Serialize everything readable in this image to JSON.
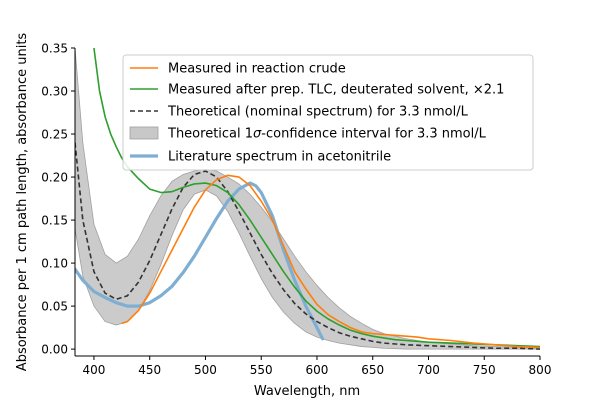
{
  "chart_data": {
    "type": "line",
    "title": "",
    "xlabel": "Wavelength, nm",
    "ylabel": "Absorbance per 1 cm path length, absorbance units",
    "xlim": [
      383,
      800
    ],
    "ylim": [
      -0.008,
      0.35
    ],
    "x_ticks": [
      400,
      450,
      500,
      550,
      600,
      650,
      700,
      750,
      800
    ],
    "x_tick_labels": [
      "400",
      "450",
      "500",
      "550",
      "600",
      "650",
      "700",
      "750",
      "800"
    ],
    "y_ticks": [
      0.0,
      0.05,
      0.1,
      0.15,
      0.2,
      0.25,
      0.3,
      0.35
    ],
    "y_tick_labels": [
      "0.00",
      "0.05",
      "0.10",
      "0.15",
      "0.20",
      "0.25",
      "0.30",
      "0.35"
    ],
    "grid": false,
    "legend_position": "top-right",
    "legend": {
      "measured_crude": "Measured in reaction crude",
      "measured_tlc": "Measured after prep. TLC, deuterated solvent, ×2.1",
      "theoretical": "Theoretical (nominal spectrum) for 3.3 nmol/L",
      "ci_prefix": "Theoretical 1",
      "ci_sigma": "σ",
      "ci_suffix": "-confidence interval for 3.3 nmol/L",
      "literature": "Literature spectrum in acetonitrile"
    },
    "series": [
      {
        "key": "measured_crude",
        "color": "#ff7f0e",
        "style": "solid",
        "x": [
          425,
          430,
          440,
          450,
          460,
          470,
          480,
          490,
          500,
          510,
          520,
          530,
          540,
          550,
          560,
          570,
          580,
          590,
          600,
          610,
          620,
          630,
          640,
          650,
          660,
          670,
          680,
          690,
          700,
          720,
          740,
          760,
          780,
          800
        ],
        "y": [
          0.03,
          0.032,
          0.045,
          0.065,
          0.09,
          0.115,
          0.14,
          0.165,
          0.185,
          0.197,
          0.202,
          0.2,
          0.19,
          0.172,
          0.15,
          0.12,
          0.09,
          0.07,
          0.052,
          0.04,
          0.032,
          0.025,
          0.02,
          0.018,
          0.017,
          0.016,
          0.015,
          0.014,
          0.012,
          0.01,
          0.007,
          0.005,
          0.003,
          0.002
        ]
      },
      {
        "key": "measured_tlc",
        "color": "#2ca02c",
        "style": "solid",
        "x": [
          400,
          405,
          410,
          415,
          420,
          425,
          430,
          440,
          450,
          460,
          470,
          480,
          490,
          500,
          510,
          520,
          530,
          540,
          550,
          560,
          570,
          580,
          590,
          600,
          610,
          620,
          630,
          640,
          650,
          660,
          670,
          680,
          700,
          720,
          740,
          760,
          780,
          800
        ],
        "y": [
          0.35,
          0.3,
          0.27,
          0.25,
          0.235,
          0.222,
          0.212,
          0.198,
          0.186,
          0.182,
          0.183,
          0.188,
          0.192,
          0.193,
          0.19,
          0.182,
          0.168,
          0.15,
          0.13,
          0.11,
          0.09,
          0.072,
          0.056,
          0.044,
          0.035,
          0.028,
          0.022,
          0.018,
          0.015,
          0.013,
          0.011,
          0.01,
          0.008,
          0.007,
          0.006,
          0.005,
          0.004,
          0.003
        ]
      },
      {
        "key": "theoretical",
        "color": "#333333",
        "style": "dashed",
        "x": [
          383,
          390,
          400,
          410,
          420,
          430,
          440,
          450,
          460,
          470,
          480,
          490,
          500,
          510,
          520,
          530,
          540,
          550,
          560,
          570,
          580,
          590,
          600,
          610,
          620,
          630,
          640,
          650,
          660,
          680,
          700,
          720,
          740,
          760,
          780,
          800
        ],
        "y": [
          0.24,
          0.15,
          0.09,
          0.065,
          0.058,
          0.062,
          0.078,
          0.103,
          0.133,
          0.163,
          0.188,
          0.203,
          0.207,
          0.2,
          0.183,
          0.16,
          0.135,
          0.11,
          0.088,
          0.069,
          0.053,
          0.041,
          0.032,
          0.025,
          0.019,
          0.015,
          0.012,
          0.009,
          0.007,
          0.005,
          0.004,
          0.003,
          0.002,
          0.001,
          0.001,
          0.0
        ]
      },
      {
        "key": "literature",
        "color": "#7faed3",
        "style": "solid-thick",
        "x": [
          383,
          390,
          400,
          410,
          420,
          430,
          440,
          450,
          460,
          470,
          480,
          490,
          500,
          510,
          520,
          530,
          540,
          545,
          550,
          560,
          570,
          580,
          590,
          600,
          605
        ],
        "y": [
          0.093,
          0.08,
          0.067,
          0.06,
          0.054,
          0.05,
          0.05,
          0.054,
          0.062,
          0.073,
          0.089,
          0.108,
          0.13,
          0.152,
          0.172,
          0.186,
          0.193,
          0.19,
          0.182,
          0.155,
          0.115,
          0.08,
          0.05,
          0.025,
          0.012
        ]
      }
    ],
    "confidence_band": {
      "key": "ci",
      "color": "#c8c8c8",
      "x": [
        383,
        390,
        400,
        410,
        420,
        430,
        440,
        450,
        460,
        470,
        480,
        490,
        500,
        510,
        520,
        530,
        540,
        550,
        560,
        570,
        580,
        590,
        600,
        610,
        620,
        630,
        640,
        650,
        660,
        680,
        700,
        720,
        740,
        760,
        780,
        800
      ],
      "upper": [
        0.35,
        0.24,
        0.145,
        0.11,
        0.1,
        0.108,
        0.128,
        0.155,
        0.178,
        0.195,
        0.203,
        0.207,
        0.209,
        0.207,
        0.2,
        0.192,
        0.18,
        0.165,
        0.148,
        0.128,
        0.108,
        0.09,
        0.074,
        0.06,
        0.048,
        0.038,
        0.03,
        0.023,
        0.018,
        0.012,
        0.008,
        0.006,
        0.004,
        0.003,
        0.002,
        0.001
      ],
      "lower": [
        0.14,
        0.085,
        0.05,
        0.032,
        0.028,
        0.032,
        0.045,
        0.068,
        0.098,
        0.132,
        0.162,
        0.18,
        0.185,
        0.178,
        0.16,
        0.135,
        0.108,
        0.082,
        0.06,
        0.043,
        0.03,
        0.02,
        0.014,
        0.01,
        0.007,
        0.005,
        0.003,
        0.002,
        0.001,
        0.0,
        0.0,
        0.0,
        0.0,
        0.0,
        0.0,
        0.0
      ]
    }
  }
}
